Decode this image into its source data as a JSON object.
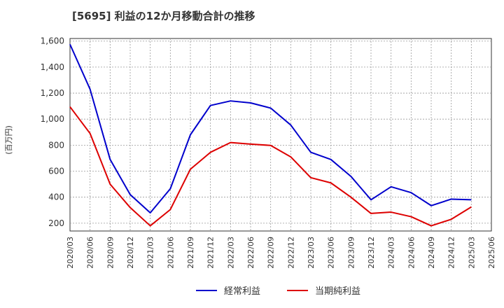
{
  "chart_data": {
    "type": "line",
    "title": "[5695]  利益の12か月移動合計の推移",
    "ylabel": "(百万円)",
    "xlabel": "",
    "ylim": [
      140,
      1620
    ],
    "yticks": [
      200,
      400,
      600,
      800,
      1000,
      1200,
      1400,
      1600
    ],
    "ytick_labels": [
      "200",
      "400",
      "600",
      "800",
      "1,000",
      "1,200",
      "1,400",
      "1,600"
    ],
    "categories": [
      "2020/03",
      "2020/06",
      "2020/09",
      "2020/12",
      "2021/03",
      "2021/06",
      "2021/09",
      "2021/12",
      "2022/03",
      "2022/06",
      "2022/09",
      "2022/12",
      "2023/03",
      "2023/06",
      "2023/09",
      "2023/12",
      "2024/03",
      "2024/06",
      "2024/09",
      "2024/12",
      "2025/03",
      "2025/06"
    ],
    "grid": true,
    "legend": "bottom-center",
    "series": [
      {
        "name": "経常利益",
        "color": "#0000cc",
        "values": [
          1575,
          1230,
          690,
          420,
          280,
          465,
          880,
          1105,
          1140,
          1125,
          1085,
          955,
          745,
          690,
          560,
          380,
          480,
          435,
          335,
          385,
          380,
          null
        ]
      },
      {
        "name": "当期純利益",
        "color": "#dd0000",
        "values": [
          1095,
          890,
          500,
          320,
          180,
          305,
          615,
          745,
          820,
          808,
          798,
          710,
          550,
          510,
          400,
          275,
          285,
          250,
          180,
          230,
          325,
          null
        ]
      }
    ]
  }
}
